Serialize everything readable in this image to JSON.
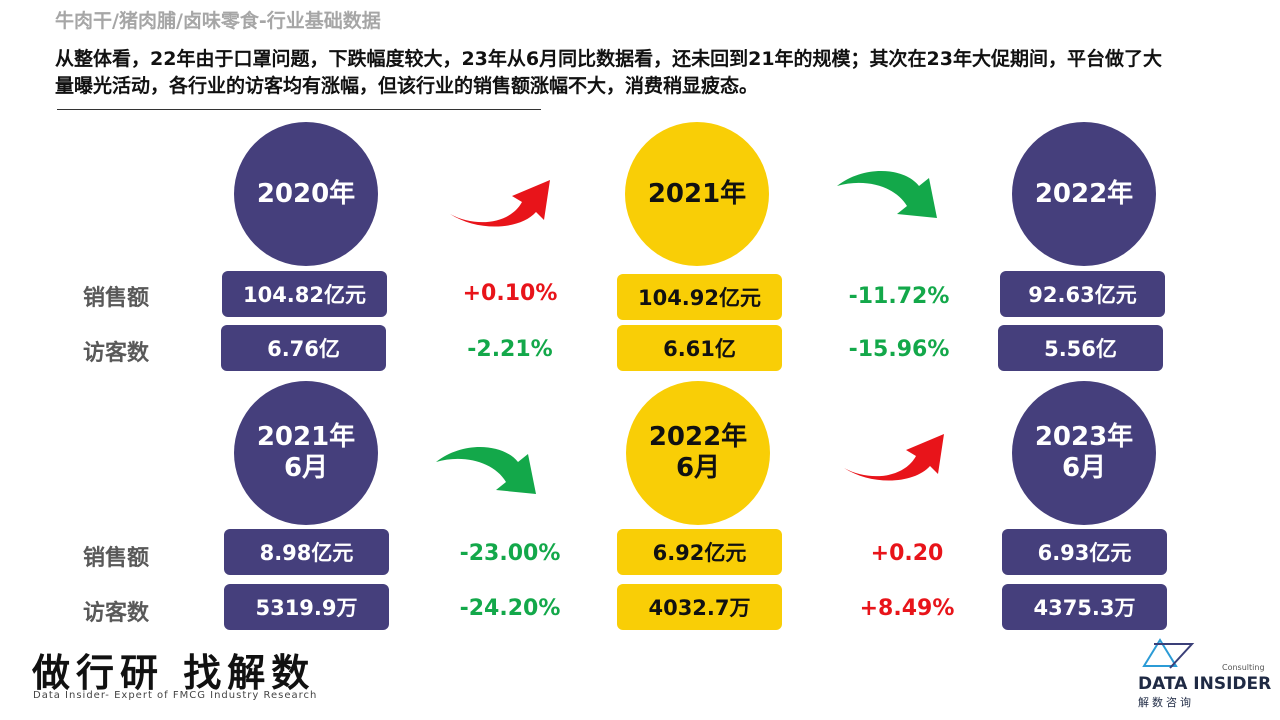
{
  "header": {
    "title": "牛肉干/猪肉脯/卤味零食-行业基础数据",
    "summary": "从整体看，22年由于口罩问题，下跌幅度较大，23年从6月同比数据看，还未回到21年的规模；其次在23年大促期间，平台做了大量曝光活动，各行业的访客均有涨幅，但该行业的销售额涨幅不大，消费稍显疲态。"
  },
  "labels": {
    "sales": "销售额",
    "visitors": "访客数"
  },
  "annual": {
    "periods": [
      {
        "label": "2020年",
        "sales": "104.82亿元",
        "visitors": "6.76亿"
      },
      {
        "label": "2021年",
        "sales": "104.92亿元",
        "visitors": "6.61亿"
      },
      {
        "label": "2022年",
        "sales": "92.63亿元",
        "visitors": "5.56亿"
      }
    ],
    "changes": [
      {
        "sales": "+0.10%",
        "visitors": "-2.21%"
      },
      {
        "sales": "-11.72%",
        "visitors": "-15.96%"
      }
    ]
  },
  "june": {
    "periods": [
      {
        "label": "2021年\n6月",
        "sales": "8.98亿元",
        "visitors": "5319.9万"
      },
      {
        "label": "2022年\n6月",
        "sales": "6.92亿元",
        "visitors": "4032.7万"
      },
      {
        "label": "2023年\n6月",
        "sales": "6.93亿元",
        "visitors": "4375.3万"
      }
    ],
    "changes": [
      {
        "sales": "-23.00%",
        "visitors": "-24.20%"
      },
      {
        "sales": "+0.20",
        "visitors": "+8.49%"
      }
    ]
  },
  "footer": {
    "slogan": "做行研 找解数",
    "slogan_en": "Data Insider- Expert of FMCG Industry Research",
    "logo_consulting": "Consulting",
    "logo_name": "DATA INSIDER",
    "logo_cn": "解数咨询"
  },
  "colors": {
    "purple": "#453f7c",
    "yellow": "#f9ce06",
    "up_red": "#e8141a",
    "down_green": "#13a84a"
  }
}
